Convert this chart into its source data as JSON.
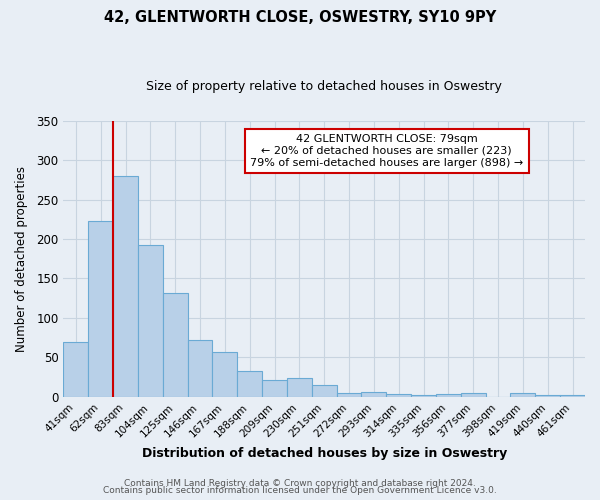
{
  "title": "42, GLENTWORTH CLOSE, OSWESTRY, SY10 9PY",
  "subtitle": "Size of property relative to detached houses in Oswestry",
  "xlabel": "Distribution of detached houses by size in Oswestry",
  "ylabel": "Number of detached properties",
  "bar_labels": [
    "41sqm",
    "62sqm",
    "83sqm",
    "104sqm",
    "125sqm",
    "146sqm",
    "167sqm",
    "188sqm",
    "209sqm",
    "230sqm",
    "251sqm",
    "272sqm",
    "293sqm",
    "314sqm",
    "335sqm",
    "356sqm",
    "377sqm",
    "398sqm",
    "419sqm",
    "440sqm",
    "461sqm"
  ],
  "bar_heights": [
    70,
    223,
    280,
    193,
    132,
    72,
    57,
    33,
    21,
    24,
    15,
    5,
    6,
    4,
    3,
    4,
    5,
    0,
    5,
    2,
    2
  ],
  "bar_color": "#b8d0e8",
  "bar_edge_color": "#6aaad4",
  "vline_color": "#cc0000",
  "annotation_text": "42 GLENTWORTH CLOSE: 79sqm\n← 20% of detached houses are smaller (223)\n79% of semi-detached houses are larger (898) →",
  "annotation_box_color": "#ffffff",
  "annotation_box_edge": "#cc0000",
  "ylim": [
    0,
    350
  ],
  "yticks": [
    0,
    50,
    100,
    150,
    200,
    250,
    300,
    350
  ],
  "bg_color": "#e8eef5",
  "plot_bg_color": "#e8eef5",
  "grid_color": "#c8d4e0",
  "footer_line1": "Contains HM Land Registry data © Crown copyright and database right 2024.",
  "footer_line2": "Contains public sector information licensed under the Open Government Licence v3.0."
}
